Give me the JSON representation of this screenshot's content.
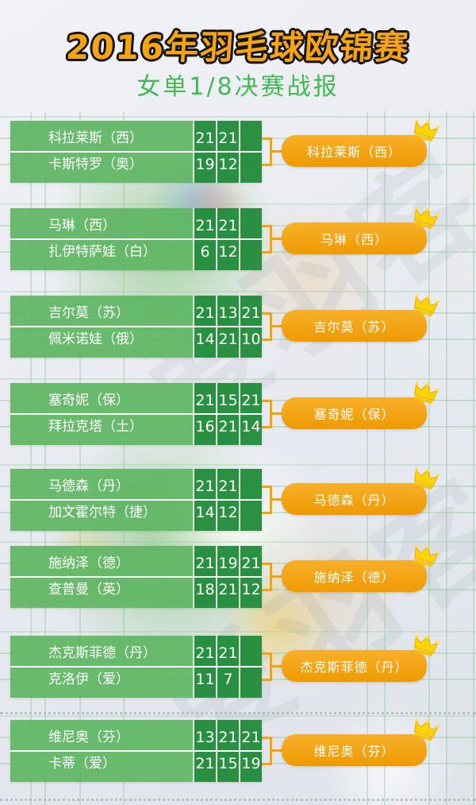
{
  "header": {
    "title": "2016年羽毛球欧锦赛",
    "subtitle": "女单1/8决赛战报"
  },
  "watermark": "爱羽客",
  "colors": {
    "title_orange": "#f7a410",
    "subtitle_green": "#43b854",
    "table_green_light": "#5fb663",
    "table_green_dark": "#218c3a",
    "connector_orange": "#f2a40e",
    "winner_box_orange": "#f2a218",
    "crown_gold": "#ffd400"
  },
  "bracket": {
    "matches": [
      {
        "player1": {
          "name": "科拉莱斯（西）",
          "scores": [
            "21",
            "21",
            ""
          ]
        },
        "player2": {
          "name": "卡斯特罗（奥）",
          "scores": [
            "19",
            "12",
            ""
          ]
        },
        "winner": "科拉莱斯（西）"
      },
      {
        "player1": {
          "name": "马琳（西）",
          "scores": [
            "21",
            "21",
            ""
          ]
        },
        "player2": {
          "name": "扎伊特萨娃（白）",
          "scores": [
            "6",
            "12",
            ""
          ]
        },
        "winner": "马琳（西）"
      },
      {
        "player1": {
          "name": "吉尔莫（苏）",
          "scores": [
            "21",
            "13",
            "21"
          ]
        },
        "player2": {
          "name": "佩米诺娃（俄）",
          "scores": [
            "14",
            "21",
            "10"
          ]
        },
        "winner": "吉尔莫（苏）"
      },
      {
        "player1": {
          "name": "塞奇妮（保）",
          "scores": [
            "21",
            "15",
            "21"
          ]
        },
        "player2": {
          "name": "拜拉克塔（土）",
          "scores": [
            "16",
            "21",
            "14"
          ]
        },
        "winner": "塞奇妮（保）"
      },
      {
        "player1": {
          "name": "马德森（丹）",
          "scores": [
            "21",
            "21",
            ""
          ]
        },
        "player2": {
          "name": "加文霍尔特（捷）",
          "scores": [
            "14",
            "12",
            ""
          ]
        },
        "winner": "马德森（丹）"
      },
      {
        "player1": {
          "name": "施纳泽（德）",
          "scores": [
            "21",
            "19",
            "21"
          ]
        },
        "player2": {
          "name": "查普曼（英）",
          "scores": [
            "18",
            "21",
            "12"
          ]
        },
        "winner": "施纳泽（德）"
      },
      {
        "player1": {
          "name": "杰克斯菲德（丹）",
          "scores": [
            "21",
            "21",
            ""
          ]
        },
        "player2": {
          "name": "克洛伊（爱）",
          "scores": [
            "11",
            "7",
            ""
          ]
        },
        "winner": "杰克斯菲德（丹）"
      },
      {
        "player1": {
          "name": "维尼奥（芬）",
          "scores": [
            "13",
            "21",
            "21"
          ]
        },
        "player2": {
          "name": "卡蒂（爱）",
          "scores": [
            "21",
            "15",
            "19"
          ]
        },
        "winner": "维尼奥（芬）"
      }
    ]
  }
}
